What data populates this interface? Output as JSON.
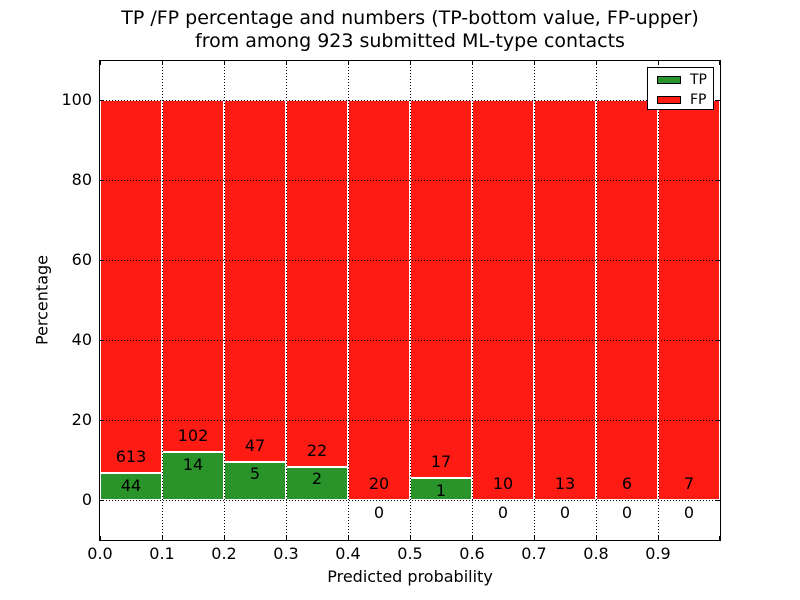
{
  "chart_data": {
    "type": "bar",
    "stacked": true,
    "percent_stacked": true,
    "title_lines": [
      "TP /FP percentage and numbers (TP-bottom value, FP-upper)",
      "from among 923 submitted ML-type contacts"
    ],
    "total_contacts": 923,
    "xlabel": "Predicted probability",
    "ylabel": "Percentage",
    "xticks": [
      "0.0",
      "0.1",
      "0.2",
      "0.3",
      "0.4",
      "0.5",
      "0.6",
      "0.7",
      "0.8",
      "0.9"
    ],
    "yticks": [
      "0",
      "20",
      "40",
      "60",
      "80",
      "100"
    ],
    "xlim": [
      0.0,
      1.0
    ],
    "ylim": [
      -10,
      110
    ],
    "grid": "dotted",
    "legend": {
      "position": "upper right",
      "entries": [
        {
          "label": "TP"
        },
        {
          "label": "FP"
        }
      ]
    },
    "colors": {
      "tp": "#2a932a",
      "fp": "#fd1b14"
    },
    "bins": [
      {
        "range": "0.0-0.1",
        "tp": 44,
        "fp": 613
      },
      {
        "range": "0.1-0.2",
        "tp": 14,
        "fp": 102
      },
      {
        "range": "0.2-0.3",
        "tp": 5,
        "fp": 47
      },
      {
        "range": "0.3-0.4",
        "tp": 2,
        "fp": 22
      },
      {
        "range": "0.4-0.5",
        "tp": 0,
        "fp": 20
      },
      {
        "range": "0.5-0.6",
        "tp": 1,
        "fp": 17
      },
      {
        "range": "0.6-0.7",
        "tp": 0,
        "fp": 10
      },
      {
        "range": "0.7-0.8",
        "tp": 0,
        "fp": 13
      },
      {
        "range": "0.8-0.9",
        "tp": 0,
        "fp": 6
      },
      {
        "range": "0.9-1.0",
        "tp": 0,
        "fp": 7
      }
    ]
  }
}
